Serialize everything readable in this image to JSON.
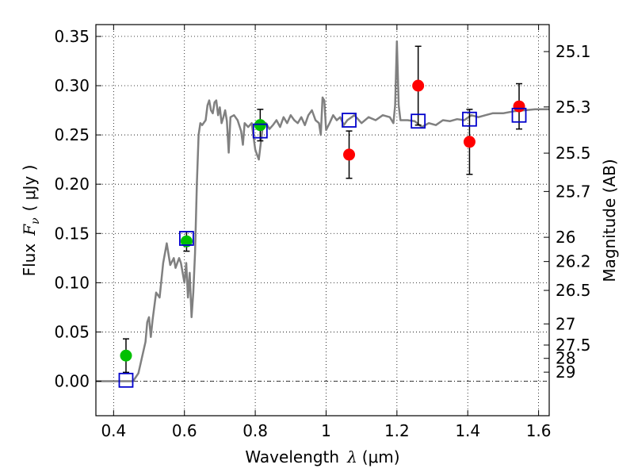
{
  "chart_data": {
    "type": "scatter",
    "xlabel_prefix": "Wavelength",
    "xlabel_symbol": "λ",
    "xlabel_unit": "(μm)",
    "ylabel_prefix": "Flux",
    "ylabel_symbol": "F",
    "ylabel_subscript": "ν",
    "ylabel_unit": "( μJy )",
    "y2label": "Magnitude (AB)",
    "xlim": [
      0.35,
      1.63
    ],
    "ylim": [
      -0.035,
      0.362
    ],
    "x_ticks": [
      0.4,
      0.6,
      0.8,
      1.0,
      1.2,
      1.4,
      1.6
    ],
    "x_tick_labels": [
      "0.4",
      "0.6",
      "0.8",
      "1",
      "1.2",
      "1.4",
      "1.6"
    ],
    "y_ticks": [
      0.0,
      0.05,
      0.1,
      0.15,
      0.2,
      0.25,
      0.3,
      0.35
    ],
    "y_tick_labels": [
      "0.00",
      "0.05",
      "0.10",
      "0.15",
      "0.20",
      "0.25",
      "0.30",
      "0.35"
    ],
    "magnitude_ticks": [
      {
        "label": "25.1",
        "flux": 0.3346
      },
      {
        "label": "25.3",
        "flux": 0.2784
      },
      {
        "label": "25.5",
        "flux": 0.2315
      },
      {
        "label": "25.7",
        "flux": 0.1926
      },
      {
        "label": "26",
        "flux": 0.1461
      },
      {
        "label": "26.2",
        "flux": 0.1215
      },
      {
        "label": "26.5",
        "flux": 0.0922
      },
      {
        "label": "27",
        "flux": 0.0582
      },
      {
        "label": "27.5",
        "flux": 0.0367
      },
      {
        "label": "28",
        "flux": 0.0232
      },
      {
        "label": "29",
        "flux": 0.0092
      }
    ],
    "grid": true,
    "colors": {
      "model": "#808080",
      "green_points": "#00c000",
      "red_points": "#ff0000",
      "model_boxes": "#0000cc",
      "errorbars": "#000000"
    },
    "model_spectrum": [
      [
        0.35,
        0.0
      ],
      [
        0.455,
        0.0
      ],
      [
        0.47,
        0.008
      ],
      [
        0.49,
        0.04
      ],
      [
        0.495,
        0.06
      ],
      [
        0.5,
        0.065
      ],
      [
        0.505,
        0.045
      ],
      [
        0.51,
        0.062
      ],
      [
        0.52,
        0.09
      ],
      [
        0.53,
        0.085
      ],
      [
        0.54,
        0.12
      ],
      [
        0.55,
        0.14
      ],
      [
        0.56,
        0.118
      ],
      [
        0.57,
        0.125
      ],
      [
        0.575,
        0.115
      ],
      [
        0.585,
        0.125
      ],
      [
        0.59,
        0.12
      ],
      [
        0.6,
        0.1
      ],
      [
        0.605,
        0.12
      ],
      [
        0.61,
        0.085
      ],
      [
        0.615,
        0.11
      ],
      [
        0.62,
        0.065
      ],
      [
        0.625,
        0.09
      ],
      [
        0.63,
        0.13
      ],
      [
        0.635,
        0.2
      ],
      [
        0.64,
        0.25
      ],
      [
        0.645,
        0.262
      ],
      [
        0.65,
        0.26
      ],
      [
        0.66,
        0.265
      ],
      [
        0.665,
        0.28
      ],
      [
        0.67,
        0.285
      ],
      [
        0.675,
        0.275
      ],
      [
        0.68,
        0.272
      ],
      [
        0.685,
        0.283
      ],
      [
        0.69,
        0.285
      ],
      [
        0.695,
        0.27
      ],
      [
        0.7,
        0.278
      ],
      [
        0.705,
        0.262
      ],
      [
        0.71,
        0.268
      ],
      [
        0.715,
        0.275
      ],
      [
        0.72,
        0.264
      ],
      [
        0.725,
        0.232
      ],
      [
        0.73,
        0.268
      ],
      [
        0.74,
        0.27
      ],
      [
        0.75,
        0.265
      ],
      [
        0.76,
        0.254
      ],
      [
        0.765,
        0.24
      ],
      [
        0.77,
        0.262
      ],
      [
        0.78,
        0.258
      ],
      [
        0.79,
        0.262
      ],
      [
        0.8,
        0.235
      ],
      [
        0.81,
        0.225
      ],
      [
        0.82,
        0.255
      ],
      [
        0.83,
        0.262
      ],
      [
        0.84,
        0.256
      ],
      [
        0.85,
        0.26
      ],
      [
        0.86,
        0.265
      ],
      [
        0.87,
        0.258
      ],
      [
        0.88,
        0.268
      ],
      [
        0.89,
        0.262
      ],
      [
        0.9,
        0.27
      ],
      [
        0.91,
        0.265
      ],
      [
        0.92,
        0.262
      ],
      [
        0.93,
        0.268
      ],
      [
        0.94,
        0.26
      ],
      [
        0.95,
        0.27
      ],
      [
        0.96,
        0.275
      ],
      [
        0.97,
        0.265
      ],
      [
        0.98,
        0.262
      ],
      [
        0.985,
        0.25
      ],
      [
        0.99,
        0.288
      ],
      [
        0.995,
        0.285
      ],
      [
        1.0,
        0.255
      ],
      [
        1.01,
        0.262
      ],
      [
        1.02,
        0.27
      ],
      [
        1.03,
        0.265
      ],
      [
        1.04,
        0.268
      ],
      [
        1.05,
        0.26
      ],
      [
        1.06,
        0.265
      ],
      [
        1.08,
        0.27
      ],
      [
        1.1,
        0.262
      ],
      [
        1.12,
        0.268
      ],
      [
        1.14,
        0.265
      ],
      [
        1.16,
        0.27
      ],
      [
        1.18,
        0.268
      ],
      [
        1.19,
        0.262
      ],
      [
        1.195,
        0.28
      ],
      [
        1.2,
        0.345
      ],
      [
        1.205,
        0.28
      ],
      [
        1.21,
        0.265
      ],
      [
        1.23,
        0.265
      ],
      [
        1.25,
        0.264
      ],
      [
        1.27,
        0.258
      ],
      [
        1.29,
        0.262
      ],
      [
        1.31,
        0.26
      ],
      [
        1.33,
        0.265
      ],
      [
        1.35,
        0.264
      ],
      [
        1.37,
        0.266
      ],
      [
        1.39,
        0.265
      ],
      [
        1.41,
        0.27
      ],
      [
        1.43,
        0.268
      ],
      [
        1.45,
        0.27
      ],
      [
        1.47,
        0.272
      ],
      [
        1.5,
        0.272
      ],
      [
        1.53,
        0.274
      ],
      [
        1.56,
        0.275
      ],
      [
        1.59,
        0.276
      ],
      [
        1.63,
        0.276
      ]
    ],
    "observed": [
      {
        "x": 0.435,
        "y": 0.026,
        "yerr": 0.017,
        "color": "green"
      },
      {
        "x": 0.606,
        "y": 0.142,
        "yerr": 0.01,
        "color": "green"
      },
      {
        "x": 0.814,
        "y": 0.26,
        "yerr": 0.016,
        "color": "green"
      },
      {
        "x": 1.065,
        "y": 0.23,
        "yerr": 0.024,
        "color": "red"
      },
      {
        "x": 1.26,
        "y": 0.3,
        "yerr": 0.04,
        "color": "red"
      },
      {
        "x": 1.405,
        "y": 0.243,
        "yerr": 0.033,
        "color": "red"
      },
      {
        "x": 1.545,
        "y": 0.279,
        "yerr": 0.023,
        "color": "red"
      }
    ],
    "model_points": [
      {
        "x": 0.435,
        "y": 0.001
      },
      {
        "x": 0.606,
        "y": 0.145
      },
      {
        "x": 0.814,
        "y": 0.254
      },
      {
        "x": 1.065,
        "y": 0.265
      },
      {
        "x": 1.26,
        "y": 0.264
      },
      {
        "x": 1.405,
        "y": 0.266
      },
      {
        "x": 1.545,
        "y": 0.27
      }
    ]
  }
}
